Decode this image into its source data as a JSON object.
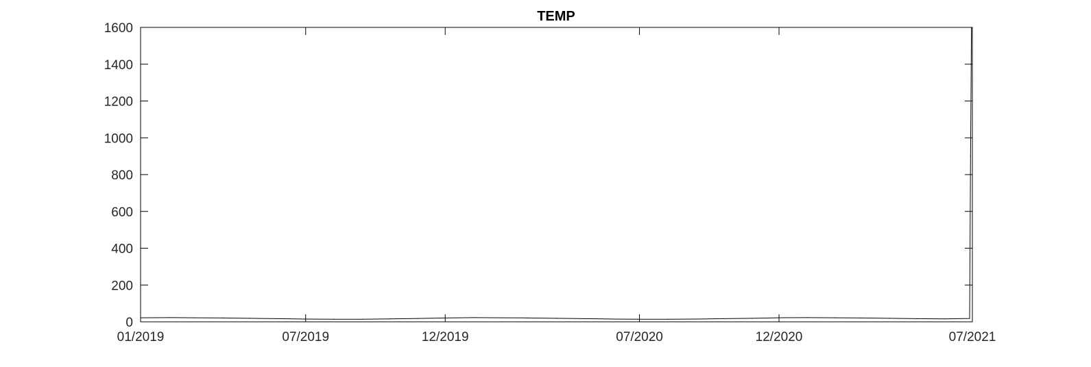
{
  "chart_data": {
    "type": "line",
    "title": "TEMP",
    "xlabel": "",
    "ylabel": "",
    "x_ticks": [
      "01/2019",
      "07/2019",
      "12/2019",
      "07/2020",
      "12/2020",
      "07/2021"
    ],
    "x_range": [
      "2019-01-01",
      "2021-07-01"
    ],
    "ylim": [
      0,
      1600
    ],
    "y_ticks": [
      0,
      200,
      400,
      600,
      800,
      1000,
      1200,
      1400,
      1600
    ],
    "grid": false,
    "series": [
      {
        "color": "#000000",
        "x": [
          "2019-01-01",
          "2019-02-01",
          "2019-03-01",
          "2019-04-01",
          "2019-05-01",
          "2019-06-01",
          "2019-07-01",
          "2019-08-01",
          "2019-09-01",
          "2019-10-01",
          "2019-11-01",
          "2019-12-01",
          "2020-01-01",
          "2020-02-01",
          "2020-03-01",
          "2020-04-01",
          "2020-05-01",
          "2020-06-01",
          "2020-07-01",
          "2020-08-01",
          "2020-09-01",
          "2020-10-01",
          "2020-11-01",
          "2020-12-01",
          "2021-01-01",
          "2021-02-01",
          "2021-03-01",
          "2021-04-01",
          "2021-05-01",
          "2021-06-01",
          "2021-06-28",
          "2021-06-29",
          "2021-06-30"
        ],
        "y": [
          22,
          23,
          22,
          21,
          19,
          17,
          15,
          14,
          14,
          16,
          18,
          21,
          23,
          22,
          21,
          19,
          17,
          15,
          14,
          14,
          15,
          17,
          19,
          22,
          23,
          22,
          21,
          19,
          17,
          16,
          18,
          900,
          1600
        ]
      }
    ]
  }
}
